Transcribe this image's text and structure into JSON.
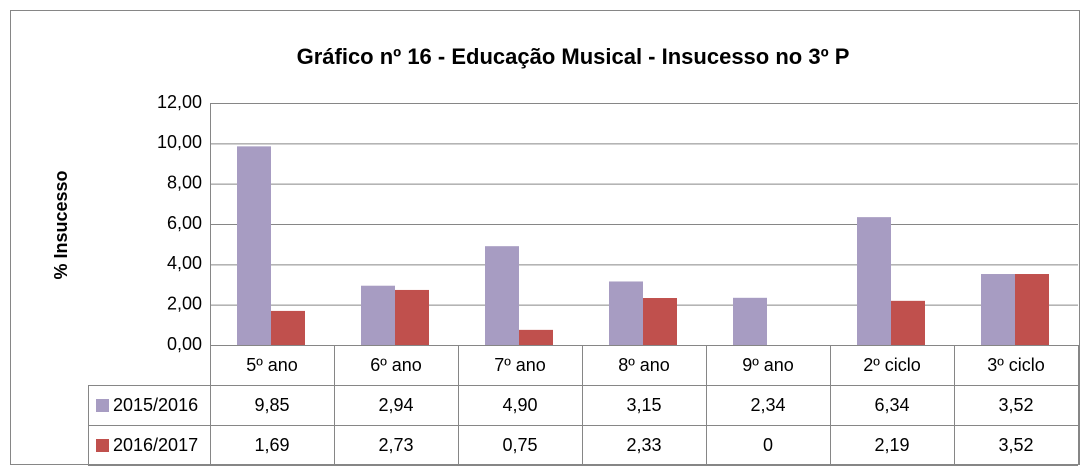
{
  "chart_data": {
    "type": "bar",
    "title": "Gráfico nº 16 - Educação Musical - Insucesso no 3º P",
    "y_label": "% Insucesso",
    "categories": [
      "5º ano",
      "6º ano",
      "7º ano",
      "8º ano",
      "9º ano",
      "2º ciclo",
      "3º ciclo"
    ],
    "series": [
      {
        "name": "2015/2016",
        "color": "#a79cc2",
        "values": [
          9.85,
          2.94,
          4.9,
          3.15,
          2.34,
          6.34,
          3.52
        ],
        "value_labels": [
          "9,85",
          "2,94",
          "4,90",
          "3,15",
          "2,34",
          "6,34",
          "3,52"
        ]
      },
      {
        "name": "2016/2017",
        "color": "#c0504d",
        "values": [
          1.69,
          2.73,
          0.75,
          2.33,
          0,
          2.19,
          3.52
        ],
        "value_labels": [
          "1,69",
          "2,73",
          "0,75",
          "2,33",
          "0",
          "2,19",
          "3,52"
        ]
      }
    ],
    "ylim": [
      0,
      12
    ],
    "yticks": [
      {
        "value": 0,
        "label": "0,00"
      },
      {
        "value": 2,
        "label": "2,00"
      },
      {
        "value": 4,
        "label": "4,00"
      },
      {
        "value": 6,
        "label": "6,00"
      },
      {
        "value": 8,
        "label": "8,00"
      },
      {
        "value": 10,
        "label": "10,00"
      },
      {
        "value": 12,
        "label": "12,00"
      }
    ],
    "grid": true
  }
}
